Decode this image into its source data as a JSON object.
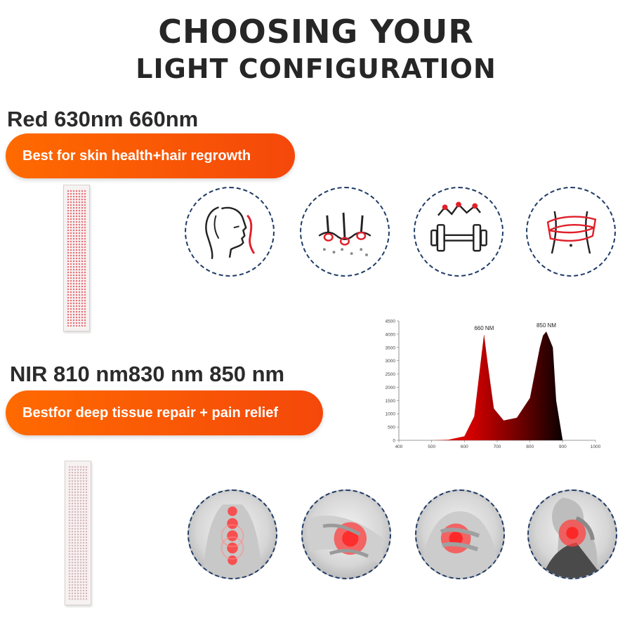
{
  "header": {
    "line1": "CHOOSING YOUR",
    "line2": "LIGHT CONFIGURATION"
  },
  "red_section": {
    "heading": "Red 630nm 660nm",
    "pill": "Best for skin health+hair regrowth",
    "icons": [
      "face-skin-icon",
      "hair-follicle-icon",
      "dumbbell-icon",
      "waist-slimming-icon"
    ]
  },
  "nir_section": {
    "heading": "NIR 810 nm830 nm 850 nm",
    "pill": "Bestfor deep tissue repair + pain relief",
    "images": [
      "spine-pain-photo",
      "knee-pain-photo",
      "chest-pain-photo",
      "neck-pain-photo"
    ]
  },
  "colors": {
    "pill_orange": "#f4480a",
    "circle_border": "#1f3b66",
    "red_peak": "#e00000",
    "nir_peak": "#1a0000"
  },
  "chart_data": {
    "type": "area",
    "x": [
      400,
      500,
      550,
      600,
      630,
      650,
      660,
      670,
      690,
      720,
      760,
      800,
      830,
      840,
      850,
      870,
      880,
      900
    ],
    "y": [
      0,
      0,
      20,
      150,
      900,
      3000,
      4000,
      3000,
      1200,
      750,
      850,
      1600,
      3500,
      3950,
      4100,
      3500,
      1500,
      0
    ],
    "xlim": [
      400,
      1000
    ],
    "ylim": [
      0,
      4500
    ],
    "x_ticks": [
      "400",
      "500",
      "600",
      "700",
      "800",
      "900",
      "1000"
    ],
    "y_ticks": [
      "0",
      "500",
      "1000",
      "1500",
      "2000",
      "2500",
      "3000",
      "3500",
      "4000",
      "4500"
    ],
    "annotations": [
      {
        "label": "660 NM",
        "x": 660,
        "y": 4000
      },
      {
        "label": "850 NM",
        "x": 850,
        "y": 4100
      }
    ]
  }
}
